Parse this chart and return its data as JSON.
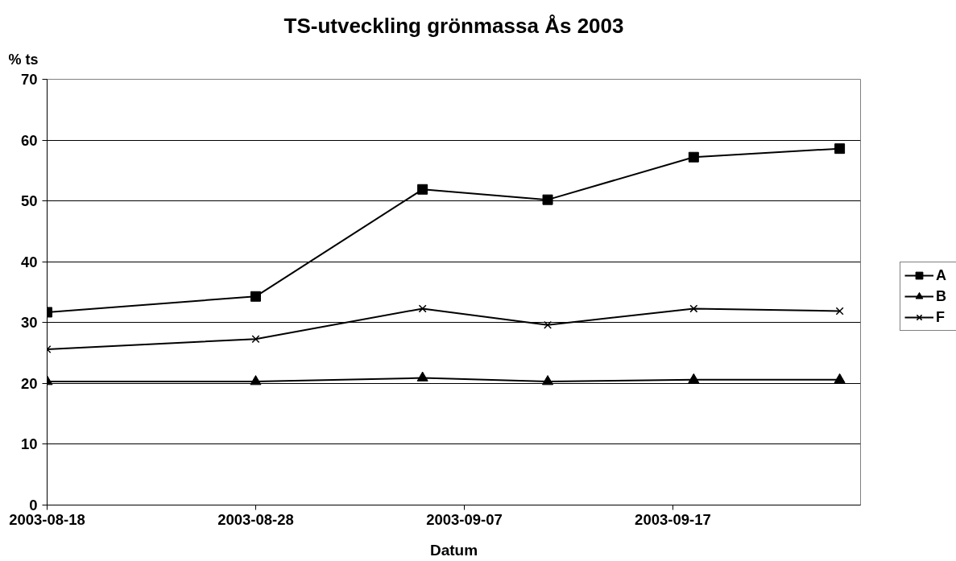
{
  "chart_data": {
    "type": "line",
    "title": "TS-utveckling grönmassa Ås 2003",
    "xlabel": "Datum",
    "ylabel": "% ts",
    "x": [
      "2003-08-18",
      "2003-08-28",
      "2003-09-05",
      "2003-09-11",
      "2003-09-18",
      "2003-09-25"
    ],
    "series": [
      {
        "name": "A",
        "color": "#000000",
        "marker": "square",
        "values": [
          31.7,
          34.3,
          51.9,
          50.2,
          57.2,
          58.6
        ]
      },
      {
        "name": "B",
        "color": "#000000",
        "marker": "triangle",
        "values": [
          20.3,
          20.3,
          20.9,
          20.3,
          20.6,
          20.6
        ]
      },
      {
        "name": "F",
        "color": "#000000",
        "marker": "cross",
        "values": [
          25.6,
          27.3,
          32.3,
          29.6,
          32.3,
          31.9
        ]
      }
    ],
    "xlim": [
      "2003-08-18",
      "2003-09-26"
    ],
    "xticks": [
      "2003-08-18",
      "2003-08-28",
      "2003-09-07",
      "2003-09-17"
    ],
    "ylim": [
      0,
      70
    ],
    "yticks": [
      0,
      10,
      20,
      30,
      40,
      50,
      60,
      70
    ],
    "grid": "y",
    "legend": "right",
    "line_style": "solid"
  }
}
